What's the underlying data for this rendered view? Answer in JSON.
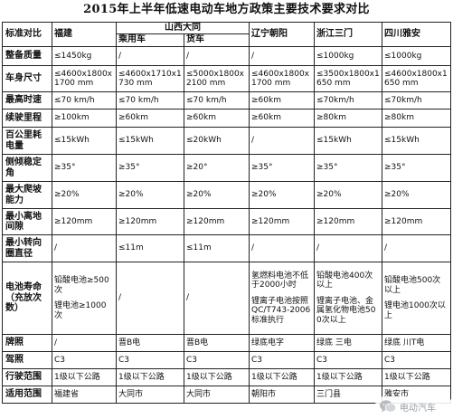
{
  "title": "2015年上半年低速电动车地方政策主要技术要求对比",
  "header": {
    "corner": "标准对比",
    "fujian": "福建",
    "shanxi": "山西大同",
    "passenger": "乘用车",
    "truck": "货车",
    "liaoning": "辽宁朝阳",
    "zhejiang": "浙江三门",
    "sichuan": "四川雅安"
  },
  "rows": [
    {
      "name": "整备质量",
      "fujian": "≤1450kg",
      "passenger": "/",
      "truck": "/",
      "liaoning": "/",
      "zhejiang": "≤1000kg",
      "sichuan": "≤1000kg"
    },
    {
      "name": "车身尺寸",
      "fujian": "≤4600x1800x1700 mm",
      "passenger": "≤4600x1710x1730 mm",
      "truck": "≤5000x1800x2100 mm",
      "liaoning": "≤4600x1800x1700 mm",
      "zhejiang": "≤3500x1800x1650 mm",
      "sichuan": "≤4600x1800x1650 mm"
    },
    {
      "name": "最高时速",
      "fujian": "≤70 km/h",
      "passenger": "≤70 km/h",
      "truck": "≤70 km/h",
      "liaoning": "≥60km",
      "zhejiang": "≤70km/h",
      "sichuan": "≤70km/h"
    },
    {
      "name": "续驶里程",
      "fujian": "≥100km",
      "passenger": "≥60km",
      "truck": "≥60km",
      "liaoning": "≥60km",
      "zhejiang": "≥80km",
      "sichuan": "≥80km"
    },
    {
      "name": "百公里耗电量",
      "fujian": "≤15kWh",
      "passenger": "≤15kWh",
      "truck": "≤20kWh",
      "liaoning": "/",
      "zhejiang": "≤15kWh",
      "sichuan": "≤15kWh"
    },
    {
      "name": "侧倾稳定角",
      "fujian": "≥35°",
      "passenger": "≥35°",
      "truck": "≥20°",
      "liaoning": "≥35°",
      "zhejiang": "≥35°",
      "sichuan": "≥35°"
    },
    {
      "name": "最大爬坡能力",
      "fujian": "≥20%",
      "passenger": "≥20%",
      "truck": "≥20%",
      "liaoning": "≥20%",
      "zhejiang": "≥20%",
      "sichuan": "≥20%"
    },
    {
      "name": "最小离地间隙",
      "fujian": "≥120mm",
      "passenger": "≥120mm",
      "truck": "≥120mm",
      "liaoning": "≥120mm",
      "zhejiang": "≥120mm",
      "sichuan": "≥120mm"
    },
    {
      "name": "最小转向圈直径",
      "fujian": "/",
      "passenger": "≤11m",
      "truck": "≤11m",
      "liaoning": "/",
      "zhejiang": "/",
      "sichuan": "/"
    },
    {
      "name": "电池寿命（充放次数）",
      "fujian": "铅酸电池≥500次",
      "fujian2": "锂电池≥1000次",
      "passenger": "/",
      "truck": "/",
      "liaoning": "氢燃料电池不低于2000小时",
      "liaoning2": "锂离子电池按照QC/T743-2006标准执行",
      "zhejiang": "铅酸电池400次以上",
      "zhejiang2": "锂离子电池、金属氢化物电池500次以上",
      "sichuan": "铅酸电池500次以上",
      "sichuan2": "锂电池1000次以上"
    },
    {
      "name": "牌照",
      "fujian": "/",
      "passenger": "晋B电",
      "truck": "晋B电",
      "liaoning": "绿底电字",
      "zhejiang": "绿底 三电",
      "sichuan": "绿底 川T电"
    },
    {
      "name": "驾照",
      "fujian": "C3",
      "passenger": "C3",
      "truck": "C3",
      "liaoning": "C3",
      "zhejiang": "C3",
      "sichuan": "C3"
    },
    {
      "name": "行驶范围",
      "fujian": "1级以下公路",
      "passenger": "1级以下公路",
      "truck": "1级以下公路",
      "liaoning": "1级以下公路",
      "zhejiang": "1级以下公路",
      "sichuan": "1级以下公路"
    },
    {
      "name": "适用范围",
      "fujian": "福建省",
      "passenger": "大同市",
      "truck": "大同市",
      "liaoning": "朝阳市",
      "zhejiang": "三门县",
      "sichuan": "雅安市"
    }
  ],
  "watermark": {
    "icon": "wechat-icon",
    "text": "电动汽车"
  }
}
